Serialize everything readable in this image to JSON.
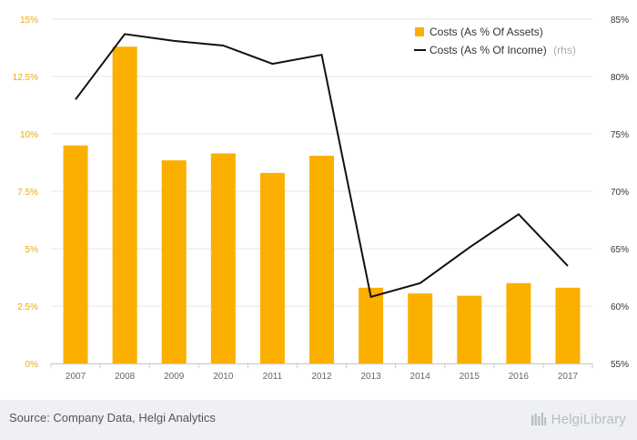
{
  "chart_data": {
    "type": "bar",
    "categories": [
      "2007",
      "2008",
      "2009",
      "2010",
      "2011",
      "2012",
      "2013",
      "2014",
      "2015",
      "2016",
      "2017"
    ],
    "series": [
      {
        "name": "Costs (As % Of Assets)",
        "type": "bar",
        "axis": "left",
        "color": "#fbb000",
        "values": [
          9.5,
          13.8,
          8.85,
          9.15,
          8.3,
          9.05,
          3.3,
          3.05,
          2.95,
          3.5,
          3.3
        ]
      },
      {
        "name": "Costs (As % Of Income)",
        "name_suffix": "(rhs)",
        "type": "line",
        "axis": "right",
        "color": "#111111",
        "values": [
          78.0,
          83.7,
          83.1,
          82.7,
          81.1,
          81.9,
          60.8,
          62.0,
          65.1,
          68.0,
          63.5
        ]
      }
    ],
    "y_left": {
      "ylim": [
        0,
        15
      ],
      "ticks": [
        "0%",
        "2.5%",
        "5%",
        "7.5%",
        "10%",
        "12.5%",
        "15%"
      ],
      "tick_values": [
        0,
        2.5,
        5,
        7.5,
        10,
        12.5,
        15
      ]
    },
    "y_right": {
      "ylim": [
        55,
        85
      ],
      "ticks": [
        "55%",
        "60%",
        "65%",
        "70%",
        "75%",
        "80%",
        "85%"
      ],
      "tick_values": [
        55,
        60,
        65,
        70,
        75,
        80,
        85
      ]
    },
    "grid": true,
    "legend_position": "top-right",
    "title": "",
    "xlabel": "",
    "ylabel": ""
  },
  "footer": {
    "source": "Source: Company Data, Helgi Analytics",
    "logo": "HelgiLibrary"
  }
}
